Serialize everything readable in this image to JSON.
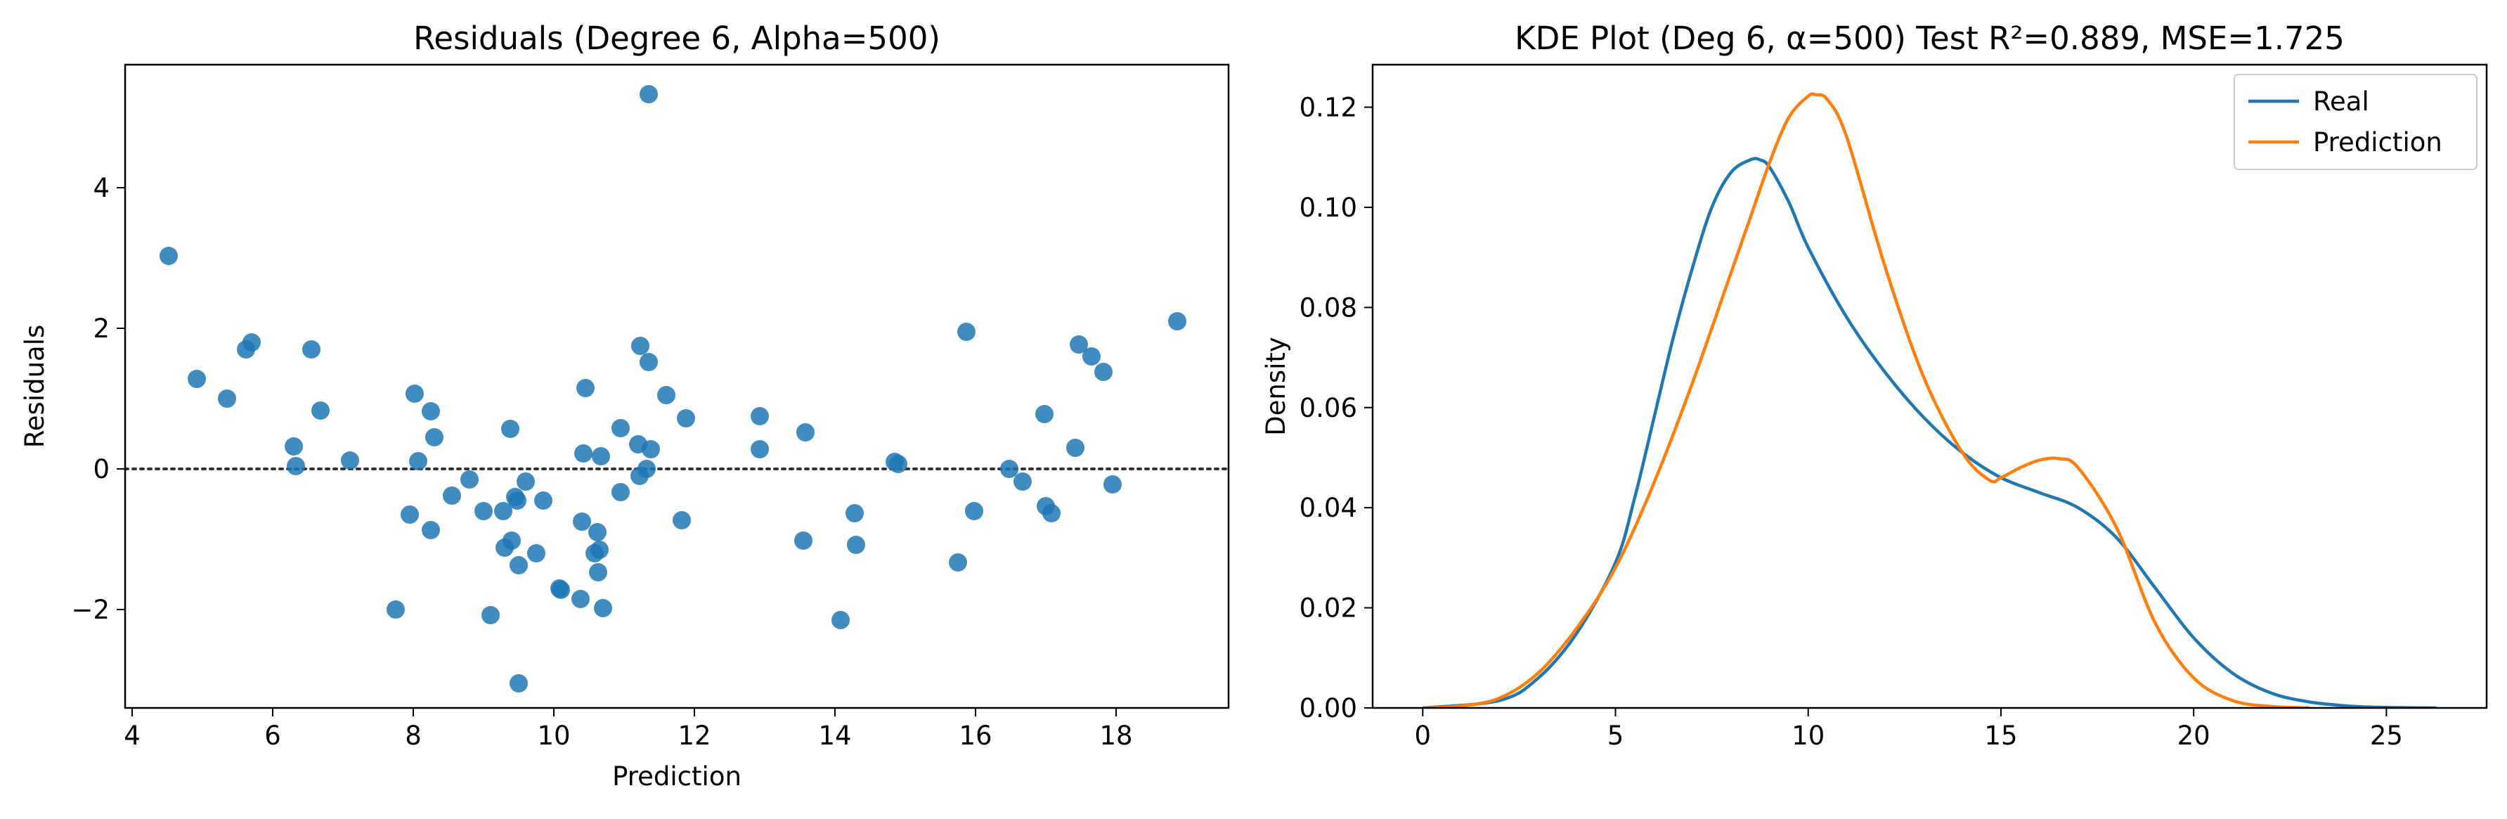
{
  "chart_data": [
    {
      "type": "scatter",
      "title": "Residuals (Degree 6, Alpha=500)",
      "xlabel": "Prediction",
      "ylabel": "Residuals",
      "xlim": [
        3.9,
        19.6
      ],
      "ylim": [
        -3.4,
        5.75
      ],
      "xticks": [
        4,
        6,
        8,
        10,
        12,
        14,
        16,
        18
      ],
      "yticks": [
        -2,
        0,
        2,
        4
      ],
      "ytick_labels": [
        "−2",
        "0",
        "2",
        "4"
      ],
      "reference_line": {
        "y": 0,
        "style": "dotted",
        "color": "#333333"
      },
      "color": "#1f77b4",
      "points": [
        [
          4.52,
          3.03
        ],
        [
          4.92,
          1.28
        ],
        [
          5.35,
          1.0
        ],
        [
          5.62,
          1.7
        ],
        [
          5.7,
          1.8
        ],
        [
          6.3,
          0.32
        ],
        [
          6.33,
          0.04
        ],
        [
          6.55,
          1.7
        ],
        [
          6.68,
          0.83
        ],
        [
          7.1,
          0.12
        ],
        [
          7.75,
          -2.0
        ],
        [
          7.95,
          -0.65
        ],
        [
          8.02,
          1.07
        ],
        [
          8.07,
          0.11
        ],
        [
          8.25,
          0.82
        ],
        [
          8.25,
          -0.87
        ],
        [
          8.3,
          0.45
        ],
        [
          8.55,
          -0.38
        ],
        [
          8.8,
          -0.15
        ],
        [
          9.0,
          -0.6
        ],
        [
          9.1,
          -2.08
        ],
        [
          9.28,
          -0.6
        ],
        [
          9.3,
          -1.12
        ],
        [
          9.38,
          0.57
        ],
        [
          9.4,
          -1.02
        ],
        [
          9.45,
          -0.4
        ],
        [
          9.48,
          -0.45
        ],
        [
          9.5,
          -1.37
        ],
        [
          9.5,
          -3.05
        ],
        [
          9.6,
          -0.18
        ],
        [
          9.75,
          -1.2
        ],
        [
          9.85,
          -0.45
        ],
        [
          10.08,
          -1.7
        ],
        [
          10.1,
          -1.72
        ],
        [
          10.38,
          -1.85
        ],
        [
          10.4,
          -0.75
        ],
        [
          10.42,
          0.22
        ],
        [
          10.45,
          1.15
        ],
        [
          10.58,
          -1.2
        ],
        [
          10.62,
          -0.9
        ],
        [
          10.63,
          -1.47
        ],
        [
          10.65,
          -1.15
        ],
        [
          10.67,
          0.18
        ],
        [
          10.7,
          -1.98
        ],
        [
          10.95,
          0.58
        ],
        [
          10.95,
          -0.33
        ],
        [
          11.2,
          0.35
        ],
        [
          11.22,
          -0.1
        ],
        [
          11.23,
          1.75
        ],
        [
          11.32,
          0.0
        ],
        [
          11.35,
          1.52
        ],
        [
          11.38,
          0.28
        ],
        [
          11.35,
          5.33
        ],
        [
          11.6,
          1.05
        ],
        [
          11.82,
          -0.73
        ],
        [
          11.88,
          0.72
        ],
        [
          12.93,
          0.75
        ],
        [
          12.93,
          0.28
        ],
        [
          13.55,
          -1.02
        ],
        [
          13.58,
          0.52
        ],
        [
          14.08,
          -2.15
        ],
        [
          14.28,
          -0.63
        ],
        [
          14.3,
          -1.08
        ],
        [
          14.85,
          0.1
        ],
        [
          14.9,
          0.07
        ],
        [
          15.75,
          -1.33
        ],
        [
          15.87,
          1.95
        ],
        [
          15.98,
          -0.6
        ],
        [
          16.48,
          0.0
        ],
        [
          16.67,
          -0.18
        ],
        [
          16.98,
          0.78
        ],
        [
          17.0,
          -0.53
        ],
        [
          17.08,
          -0.63
        ],
        [
          17.42,
          0.3
        ],
        [
          17.47,
          1.77
        ],
        [
          17.65,
          1.6
        ],
        [
          17.82,
          1.38
        ],
        [
          17.95,
          -0.22
        ],
        [
          18.87,
          2.1
        ]
      ]
    },
    {
      "type": "line",
      "title": "KDE Plot (Deg 6, α=500) Test R²=0.889, MSE=1.725",
      "xlabel": "",
      "ylabel": "Density",
      "xlim": [
        -1.3,
        27.6
      ],
      "ylim": [
        0,
        0.1285
      ],
      "xticks": [
        0,
        5,
        10,
        15,
        20,
        25
      ],
      "yticks": [
        0.0,
        0.02,
        0.04,
        0.06,
        0.08,
        0.1,
        0.12
      ],
      "ytick_labels": [
        "0.00",
        "0.02",
        "0.04",
        "0.06",
        "0.08",
        "0.10",
        "0.12"
      ],
      "legend": {
        "location": "upper right"
      },
      "series": [
        {
          "name": "Real",
          "color": "#1f77b4",
          "x": [
            0,
            2,
            3,
            4,
            5,
            5.5,
            6,
            6.5,
            7,
            7.5,
            8,
            8.5,
            8.75,
            9,
            9.5,
            10,
            11,
            12,
            13,
            14,
            15,
            16,
            17,
            18,
            19,
            20,
            21,
            22,
            23,
            24,
            25,
            26.3
          ],
          "y": [
            0.0,
            0.0015,
            0.006,
            0.015,
            0.029,
            0.042,
            0.058,
            0.074,
            0.088,
            0.1,
            0.107,
            0.1095,
            0.1095,
            0.108,
            0.101,
            0.092,
            0.078,
            0.067,
            0.058,
            0.051,
            0.046,
            0.043,
            0.04,
            0.034,
            0.024,
            0.014,
            0.007,
            0.003,
            0.0012,
            0.0004,
            0.0001,
            0.0
          ]
        },
        {
          "name": "Prediction",
          "color": "#ff7f0e",
          "x": [
            0,
            1,
            2,
            3,
            4,
            5,
            6,
            7,
            8,
            8.5,
            9,
            9.5,
            10,
            10.2,
            10.5,
            11,
            12,
            13,
            14,
            14.7,
            15,
            15.5,
            16,
            16.5,
            17,
            18,
            19,
            20,
            21,
            22,
            23
          ],
          "y": [
            0.0,
            0.0004,
            0.002,
            0.007,
            0.016,
            0.028,
            0.045,
            0.065,
            0.087,
            0.098,
            0.109,
            0.118,
            0.1222,
            0.1225,
            0.1215,
            0.114,
            0.088,
            0.066,
            0.051,
            0.0455,
            0.046,
            0.048,
            0.0495,
            0.0498,
            0.048,
            0.036,
            0.017,
            0.006,
            0.0015,
            0.0003,
            0.0
          ]
        }
      ]
    }
  ]
}
